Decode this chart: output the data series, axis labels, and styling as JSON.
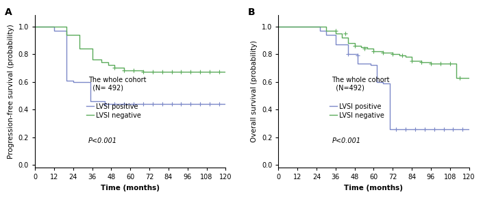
{
  "panel_A": {
    "label": "A",
    "ylabel": "Progression-free survival (probability)",
    "xlabel": "Time (months)",
    "xlim": [
      0,
      120
    ],
    "ylim": [
      -0.02,
      1.08
    ],
    "yticks": [
      0.0,
      0.2,
      0.4,
      0.6,
      0.8,
      1.0
    ],
    "xticks": [
      0,
      12,
      24,
      36,
      48,
      60,
      72,
      84,
      96,
      108,
      120
    ],
    "cohort_text": "The whole cohort\n  (N= 492)",
    "pval_text": "P<0.001",
    "lvsi_positive": {
      "color": "#7b88c8",
      "x": [
        0,
        12,
        20,
        24,
        35,
        44,
        120
      ],
      "y": [
        1.0,
        0.97,
        0.61,
        0.6,
        0.46,
        0.44,
        0.44
      ],
      "censor_x": [
        44,
        50,
        56,
        62,
        68,
        74,
        80,
        86,
        92,
        98,
        104,
        110,
        116
      ],
      "censor_y": [
        0.44,
        0.44,
        0.44,
        0.44,
        0.44,
        0.44,
        0.44,
        0.44,
        0.44,
        0.44,
        0.44,
        0.44,
        0.44
      ],
      "label": "LVSI positive"
    },
    "lvsi_negative": {
      "color": "#5aab5a",
      "x": [
        0,
        20,
        28,
        36,
        42,
        46,
        50,
        56,
        68,
        120
      ],
      "y": [
        1.0,
        0.94,
        0.84,
        0.76,
        0.74,
        0.72,
        0.7,
        0.68,
        0.67,
        0.67
      ],
      "censor_x": [
        50,
        56,
        62,
        68,
        74,
        80,
        86,
        92,
        98,
        104,
        110,
        116
      ],
      "censor_y": [
        0.7,
        0.68,
        0.68,
        0.67,
        0.67,
        0.67,
        0.67,
        0.67,
        0.67,
        0.67,
        0.67,
        0.67
      ],
      "label": "LVSI negative"
    }
  },
  "panel_B": {
    "label": "B",
    "ylabel": "Overall survival (probability)",
    "xlabel": "Time (months)",
    "xlim": [
      0,
      120
    ],
    "ylim": [
      -0.02,
      1.08
    ],
    "yticks": [
      0.0,
      0.2,
      0.4,
      0.6,
      0.8,
      1.0
    ],
    "xticks": [
      0,
      12,
      24,
      36,
      48,
      60,
      72,
      84,
      96,
      108,
      120
    ],
    "cohort_text": "The whole cohort\n  (N=492)",
    "pval_text": "P<0.001",
    "lvsi_positive": {
      "color": "#7b88c8",
      "x": [
        0,
        26,
        30,
        36,
        44,
        50,
        58,
        62,
        66,
        70,
        120
      ],
      "y": [
        1.0,
        0.97,
        0.94,
        0.87,
        0.8,
        0.73,
        0.72,
        0.6,
        0.59,
        0.26,
        0.26
      ],
      "censor_x": [
        44,
        50,
        74,
        80,
        86,
        92,
        98,
        104,
        110,
        116
      ],
      "censor_y": [
        0.8,
        0.79,
        0.26,
        0.26,
        0.26,
        0.26,
        0.26,
        0.26,
        0.26,
        0.26
      ],
      "label": "LVSI positive"
    },
    "lvsi_negative": {
      "color": "#5aab5a",
      "x": [
        0,
        30,
        36,
        40,
        44,
        48,
        52,
        56,
        60,
        66,
        72,
        76,
        80,
        84,
        90,
        96,
        108,
        112,
        120
      ],
      "y": [
        1.0,
        0.97,
        0.95,
        0.92,
        0.88,
        0.86,
        0.85,
        0.84,
        0.82,
        0.81,
        0.8,
        0.79,
        0.78,
        0.75,
        0.74,
        0.73,
        0.73,
        0.63,
        0.63
      ],
      "censor_x": [
        36,
        42,
        48,
        54,
        60,
        66,
        72,
        78,
        84,
        90,
        96,
        102,
        108,
        114
      ],
      "censor_y": [
        0.97,
        0.95,
        0.86,
        0.84,
        0.82,
        0.81,
        0.8,
        0.79,
        0.75,
        0.74,
        0.73,
        0.73,
        0.73,
        0.63
      ],
      "label": "LVSI negative"
    }
  },
  "bg_color": "#ffffff",
  "font_size_label": 7.5,
  "font_size_tick": 7,
  "font_size_legend": 7,
  "font_size_panel": 10,
  "font_size_cohort": 7,
  "font_size_pval": 7,
  "line_width": 1.0,
  "censor_marker": "+",
  "censor_size": 4
}
